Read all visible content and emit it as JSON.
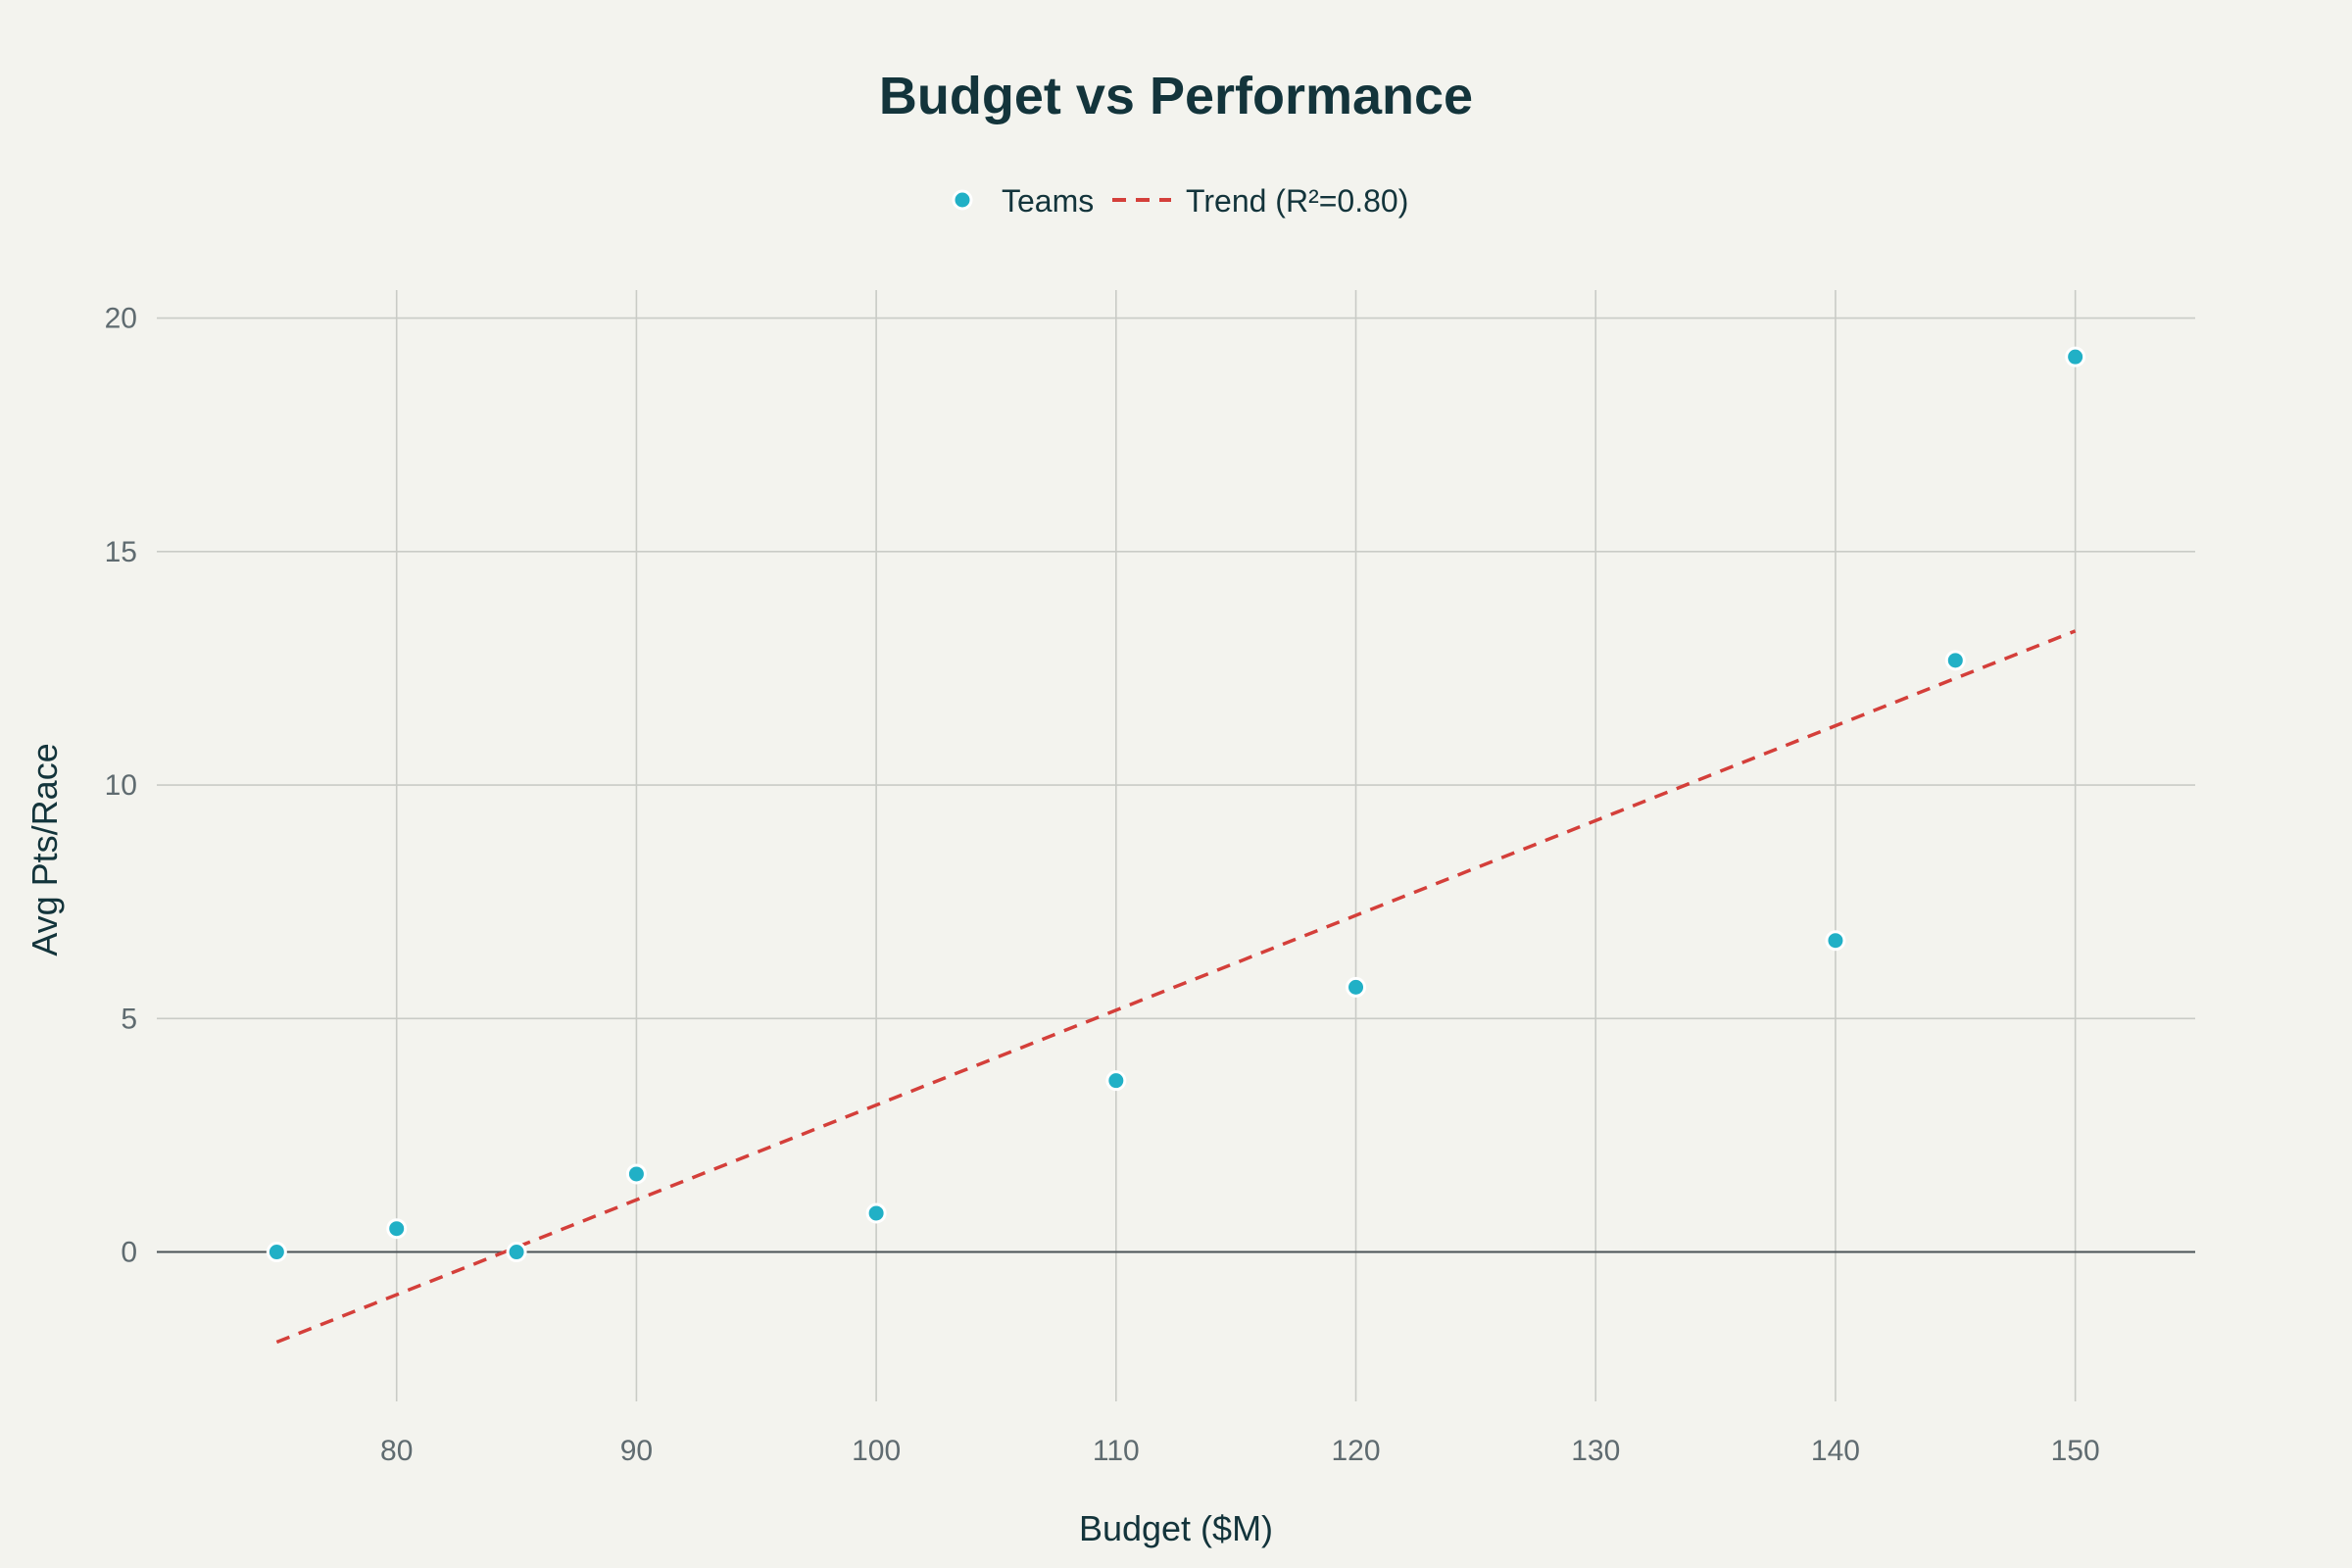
{
  "chart_data": {
    "type": "scatter",
    "title": "Budget vs Performance",
    "xlabel": "Budget ($M)",
    "ylabel": "Avg Pts/Race",
    "xlim": [
      70,
      155
    ],
    "ylim": [
      -3.2,
      20.6
    ],
    "xticks": [
      80,
      90,
      100,
      110,
      120,
      130,
      140,
      150
    ],
    "yticks": [
      0,
      5,
      10,
      15,
      20
    ],
    "grid": true,
    "legend_position": "top-center",
    "series": [
      {
        "name": "Teams",
        "kind": "markers",
        "color": "#21b0c6",
        "x": [
          75,
          80,
          85,
          90,
          100,
          110,
          120,
          140,
          145,
          150
        ],
        "y": [
          0,
          0.5,
          0,
          1.67,
          0.83,
          3.67,
          5.67,
          6.67,
          12.67,
          19.17
        ]
      },
      {
        "name": "Trend (R²=0.80)",
        "kind": "dashed-line",
        "color": "#d43f3a",
        "x": [
          75,
          150
        ],
        "y": [
          -1.93,
          13.3
        ]
      }
    ]
  }
}
